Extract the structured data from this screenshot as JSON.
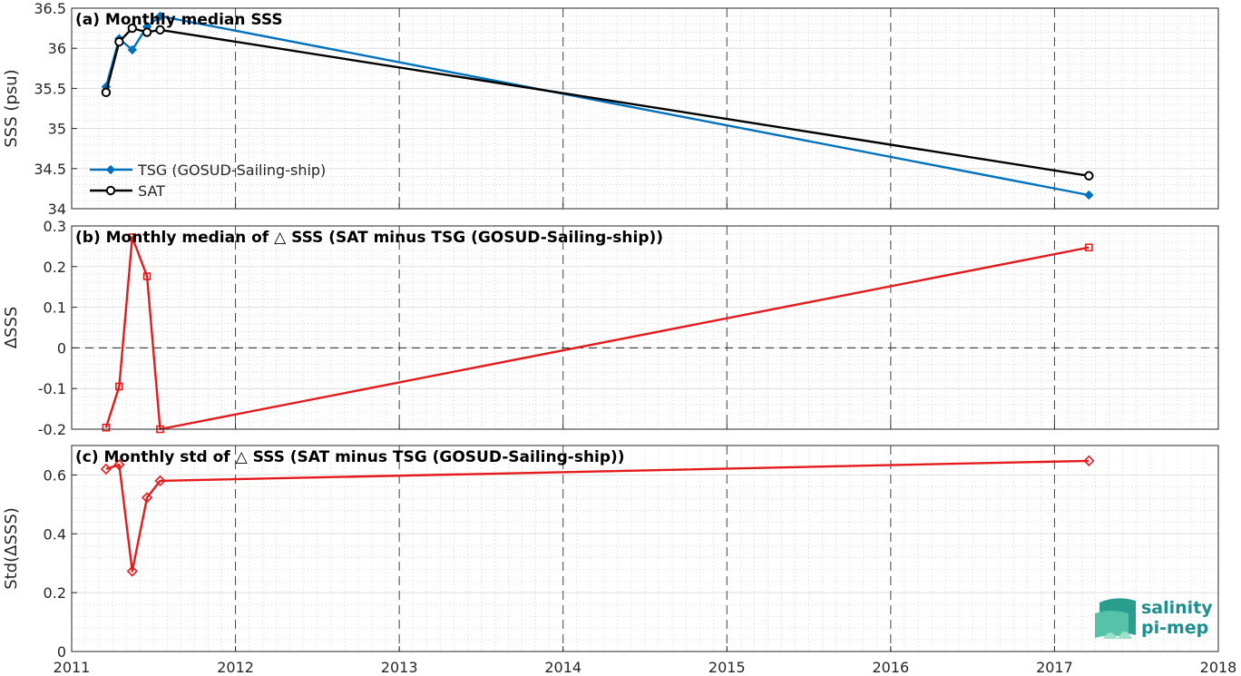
{
  "chart_data": [
    {
      "type": "line",
      "title": "(a) Monthly median SSS",
      "ylabel": "SSS (psu)",
      "xlim": [
        2011,
        2018
      ],
      "ylim": [
        34,
        36.5
      ],
      "yticks": [
        34,
        34.5,
        35,
        35.5,
        36,
        36.5
      ],
      "ytick_labels": [
        "34",
        "34.5",
        "35",
        "35.5",
        "36",
        "36.5"
      ],
      "grid": "on",
      "legend_position": "bottom-left",
      "series": [
        {
          "name": "TSG (GOSUD-Sailing-ship)",
          "color": "#0072bd",
          "marker": "diamond-filled",
          "x": [
            2011.21,
            2011.29,
            2011.37,
            2011.46,
            2011.54,
            2017.21
          ],
          "y": [
            35.52,
            36.12,
            35.98,
            36.27,
            36.4,
            34.17
          ]
        },
        {
          "name": "SAT",
          "color": "#000000",
          "marker": "circle-open",
          "x": [
            2011.21,
            2011.29,
            2011.37,
            2011.46,
            2011.54,
            2017.21
          ],
          "y": [
            35.45,
            36.08,
            36.25,
            36.2,
            36.23,
            34.41
          ]
        }
      ]
    },
    {
      "type": "line",
      "title": "(b) Monthly median of △ SSS (SAT minus TSG (GOSUD-Sailing-ship))",
      "ylabel": "ΔSSS",
      "xlim": [
        2011,
        2018
      ],
      "ylim": [
        -0.2,
        0.3
      ],
      "yticks": [
        -0.2,
        -0.1,
        0,
        0.1,
        0.2,
        0.3
      ],
      "ytick_labels": [
        "-0.2",
        "-0.1",
        "0",
        "0.1",
        "0.2",
        "0.3"
      ],
      "grid": "on",
      "zero_line": true,
      "series": [
        {
          "color": "#e41a1c",
          "marker": "square-open",
          "x": [
            2011.21,
            2011.29,
            2011.37,
            2011.46,
            2011.54,
            2017.21
          ],
          "y": [
            -0.196,
            -0.095,
            0.272,
            0.176,
            -0.2,
            0.247
          ]
        }
      ]
    },
    {
      "type": "line",
      "title": "(c) Monthly std of △ SSS (SAT minus TSG (GOSUD-Sailing-ship))",
      "ylabel": "Std(ΔSSS)",
      "xlim": [
        2011,
        2018
      ],
      "ylim": [
        0,
        0.7
      ],
      "yticks": [
        0,
        0.2,
        0.4,
        0.6
      ],
      "ytick_labels": [
        "0",
        "0.2",
        "0.4",
        "0.6"
      ],
      "grid": "on",
      "xticks": [
        2011,
        2012,
        2013,
        2014,
        2015,
        2016,
        2017,
        2018
      ],
      "xtick_labels": [
        "2011",
        "2012",
        "2013",
        "2014",
        "2015",
        "2016",
        "2017",
        "2018"
      ],
      "series": [
        {
          "color": "#e41a1c",
          "marker": "diamond-open",
          "x": [
            2011.21,
            2011.29,
            2011.37,
            2011.46,
            2011.54,
            2017.21
          ],
          "y": [
            0.62,
            0.635,
            0.273,
            0.523,
            0.58,
            0.648
          ]
        }
      ]
    }
  ],
  "logo": {
    "line1": "salinity",
    "line2": "pi-mep",
    "color": "#1d8f8f"
  }
}
